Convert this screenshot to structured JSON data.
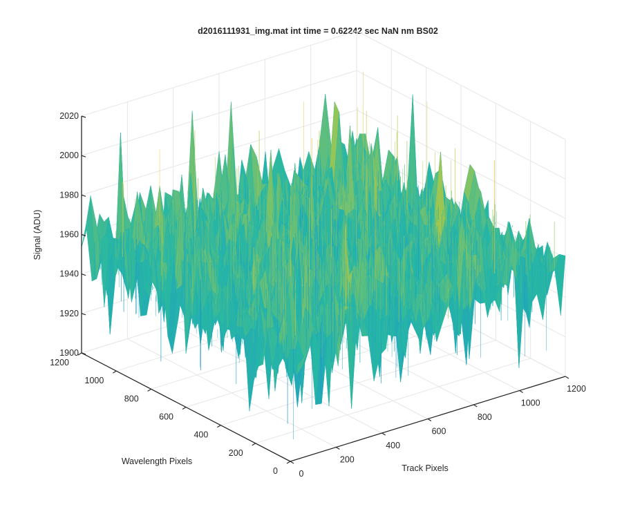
{
  "chart_data": {
    "type": "surface",
    "title": "d2016111931_img.mat int time = 0.62242 sec  NaN nm BS02",
    "xlabel": "Track Pixels",
    "ylabel": "Wavelength Pixels",
    "zlabel": "Signal (ADU)",
    "xlim": [
      0,
      1200
    ],
    "ylim": [
      0,
      1200
    ],
    "zlim": [
      1900,
      2020
    ],
    "xticks": [
      "0",
      "200",
      "400",
      "600",
      "800",
      "1000",
      "1200"
    ],
    "yticks": [
      "0",
      "200",
      "400",
      "600",
      "800",
      "1000",
      "1200"
    ],
    "zticks": [
      "1900",
      "1920",
      "1940",
      "1960",
      "1980",
      "2000",
      "2020"
    ],
    "grid": true,
    "colormap": "parula",
    "surface_stats": {
      "typical_signal": 1955,
      "typical_low": 1935,
      "typical_high": 1975,
      "max_spike": 2010,
      "min_dip": 1905
    },
    "colors": {
      "low": "#1b8fd6",
      "mid": "#27b7a4",
      "high": "#a9c84a",
      "peak": "#e3c43a"
    }
  }
}
